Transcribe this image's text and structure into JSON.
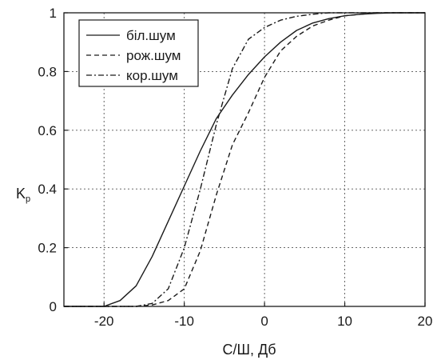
{
  "chart_data": {
    "type": "line",
    "xlabel": "С/Ш, Дб",
    "ylabel_main": "K",
    "ylabel_sub": "р",
    "xlim": [
      -25,
      20
    ],
    "ylim": [
      0,
      1
    ],
    "xticks": [
      -20,
      -10,
      0,
      10,
      20
    ],
    "yticks": [
      0,
      0.2,
      0.4,
      0.6,
      0.8,
      1
    ],
    "xtick_labels": [
      "-20",
      "-10",
      "0",
      "10",
      "20"
    ],
    "ytick_labels": [
      "0",
      "0.2",
      "0.4",
      "0.6",
      "0.8",
      "1"
    ],
    "grid": true,
    "legend_position": "top-left",
    "series": [
      {
        "name": "біл.шум",
        "style": "solid",
        "x": [
          -25,
          -20,
          -18,
          -16,
          -14,
          -12,
          -10,
          -8,
          -6,
          -4,
          -2,
          0,
          2,
          4,
          6,
          8,
          10,
          12,
          14,
          16,
          18,
          20
        ],
        "y": [
          0,
          0,
          0.02,
          0.07,
          0.17,
          0.29,
          0.41,
          0.53,
          0.64,
          0.72,
          0.79,
          0.85,
          0.9,
          0.94,
          0.965,
          0.98,
          0.99,
          0.995,
          0.998,
          1,
          1,
          1
        ]
      },
      {
        "name": "рож.шум",
        "style": "dashed",
        "x": [
          -25,
          -16,
          -14,
          -12,
          -10,
          -8,
          -6,
          -4,
          -2,
          0,
          2,
          4,
          6,
          8,
          10,
          12,
          14,
          16,
          18,
          20
        ],
        "y": [
          0,
          0,
          0.005,
          0.02,
          0.06,
          0.19,
          0.38,
          0.55,
          0.66,
          0.78,
          0.87,
          0.92,
          0.955,
          0.975,
          0.99,
          0.995,
          1,
          1,
          1,
          1
        ]
      },
      {
        "name": "кор.шум",
        "style": "dashdot",
        "x": [
          -25,
          -16,
          -14,
          -12,
          -10,
          -8,
          -6,
          -4,
          -2,
          0,
          2,
          4,
          6,
          8,
          10,
          12,
          14,
          16,
          18,
          20
        ],
        "y": [
          0,
          0,
          0.01,
          0.06,
          0.2,
          0.4,
          0.62,
          0.81,
          0.91,
          0.95,
          0.975,
          0.988,
          0.995,
          1,
          1,
          1,
          1,
          1,
          1,
          1
        ]
      }
    ]
  }
}
